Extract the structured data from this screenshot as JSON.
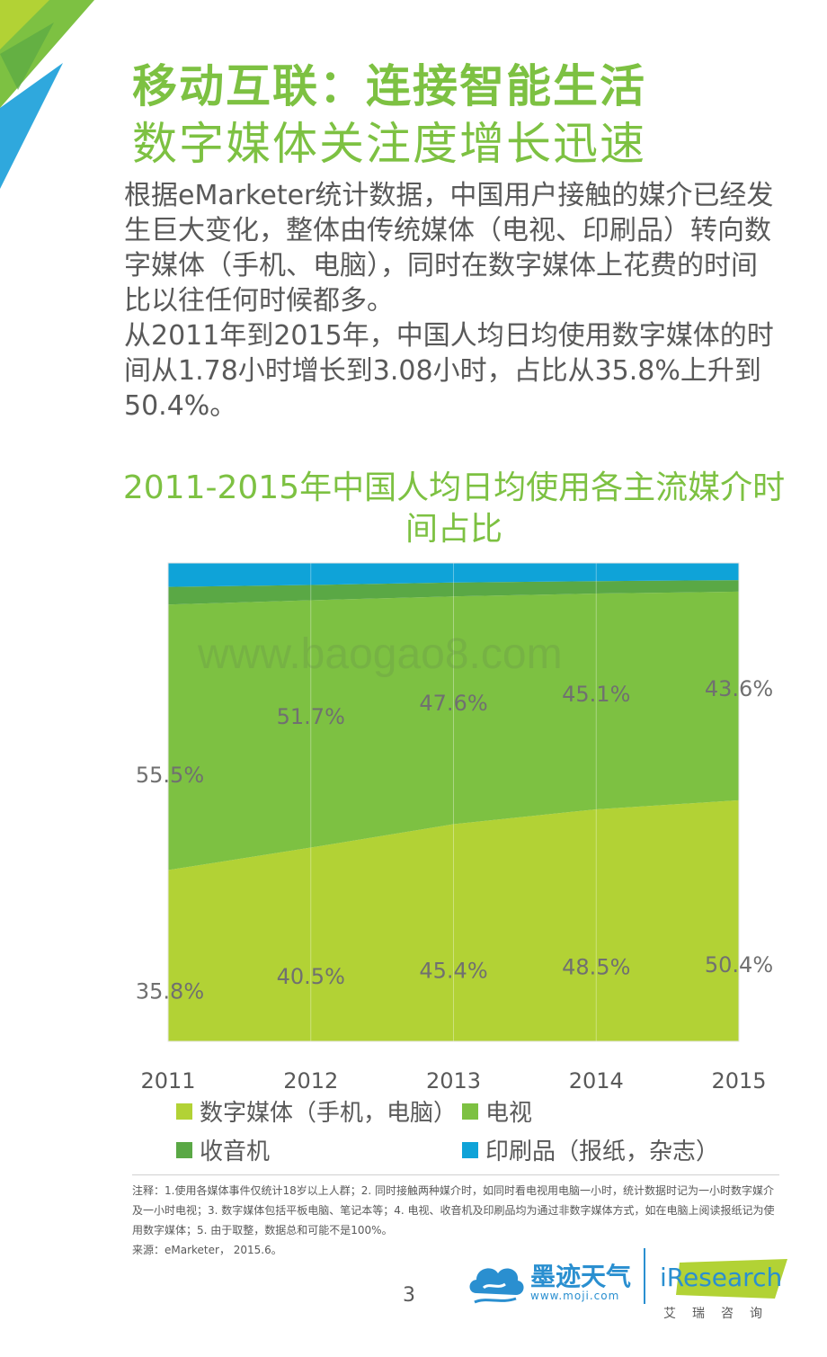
{
  "header": {
    "title_line1": "移动互联：连接智能生活",
    "title_line2": "数字媒体关注度增长迅速"
  },
  "body": {
    "paragraph1": "根据eMarketer统计数据，中国用户接触的媒介已经发生巨大变化，整体由传统媒体（电视、印刷品）转向数字媒体（手机、电脑），同时在数字媒体上花费的时间比以往任何时候都多。",
    "paragraph2": "从2011年到2015年，中国人均日均使用数字媒体的时间从1.78小时增长到3.08小时，占比从35.8%上升到50.4%。"
  },
  "chart_title": "2011-2015年中国人均日均使用各主流媒介时间占比",
  "watermark": "www.baogao8.com",
  "chart_data": {
    "type": "area",
    "stacked": true,
    "percent": true,
    "categories": [
      "2011",
      "2012",
      "2013",
      "2014",
      "2015"
    ],
    "ylim": [
      0,
      100
    ],
    "series": [
      {
        "name": "数字媒体（手机，电脑）",
        "color": "#b2d235",
        "values": [
          35.8,
          40.5,
          45.4,
          48.5,
          50.4
        ],
        "labels": [
          "35.8%",
          "40.5%",
          "45.4%",
          "48.5%",
          "50.4%"
        ]
      },
      {
        "name": "电视",
        "color": "#7dc142",
        "values": [
          55.5,
          51.7,
          47.6,
          45.1,
          43.6
        ],
        "labels": [
          "55.5%",
          "51.7%",
          "47.6%",
          "45.1%",
          "43.6%"
        ]
      },
      {
        "name": "收音机",
        "color": "#5aa845",
        "values": [
          3.7,
          3.2,
          2.9,
          2.6,
          2.4
        ]
      },
      {
        "name": "印刷品（报纸，杂志）",
        "color": "#0fa3d8",
        "values": [
          5.0,
          4.6,
          4.1,
          3.8,
          3.6
        ]
      }
    ],
    "legend_position": "bottom"
  },
  "notes": {
    "line1": "注释：1.使用各媒体事件仅统计18岁以上人群；2. 同时接触两种媒介时，如同时看电视用电脑一小时，统计数据时记为一小时数字媒介及一小时电视；3. 数字媒体包括平板电脑、笔记本等；4. 电视、收音机及印刷品均为通过非数字媒体方式，如在电脑上阅读报纸记为使用数字媒体；5. 由于取整，数据总和可能不是100%。",
    "source": "来源：eMarketer， 2015.6。"
  },
  "footer": {
    "page_number": "3",
    "moji_name": "墨迹天气",
    "moji_url": "www.moji.com",
    "iresearch": "iResearch",
    "iresearch_cn": "艾瑞咨询"
  }
}
